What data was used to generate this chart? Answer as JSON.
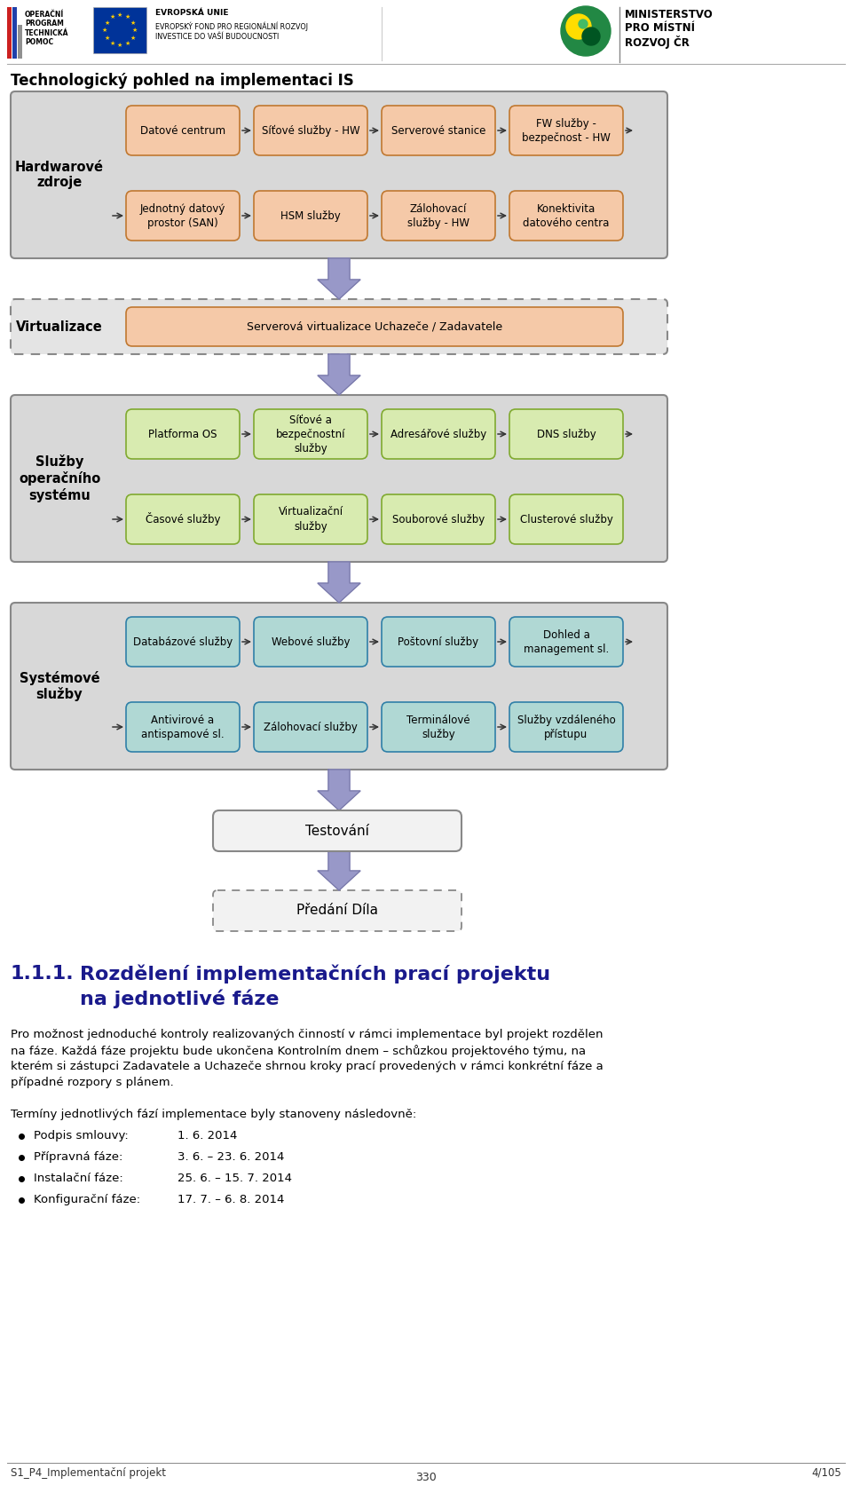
{
  "title": "Technologický pohled na implementaci IS",
  "bg_color": "#ffffff",
  "box_color_hw": "#f5c9a8",
  "box_color_virt": "#f5c9a8",
  "box_color_os": "#d8ebb0",
  "box_color_sys": "#b0d8d4",
  "box_border_hw": "#c07830",
  "box_border_os": "#80aa30",
  "box_border_sys": "#3080a8",
  "section_bg_solid": "#d8d8d8",
  "section_bg_dashed": "#e8e8e8",
  "section_border": "#888888",
  "arrow_color": "#9898c8",
  "hw_label": "Hardwarové\nzdroje",
  "virt_label": "Virtualizace",
  "os_label": "Služby\noperačního\nsystému",
  "sys_label": "Systémové\nslužby",
  "hw_row1": [
    "Datové centrum",
    "Síťové služby - HW",
    "Serverové stanice",
    "FW služby -\nbezpečnost - HW"
  ],
  "hw_row2": [
    "Jednotný datový\nprostor (SAN)",
    "HSM služby",
    "Zálohovací\nslužby - HW",
    "Konektivita\ndatového centra"
  ],
  "virt_box": "Serverová virtualizace Uchazeče / Zadavatele",
  "os_row1": [
    "Platforma OS",
    "Síťové a\nbezpečnostní\nslužby",
    "Adresářové služby",
    "DNS služby"
  ],
  "os_row2": [
    "Časové služby",
    "Virtualizační\nslužby",
    "Souborové služby",
    "Clusterové služby"
  ],
  "sys_row1": [
    "Databázové služby",
    "Webové služby",
    "Poštovní služby",
    "Dohled a\nmanagement sl."
  ],
  "sys_row2": [
    "Antivirové a\nantispamové sl.",
    "Zálohovací služby",
    "Terminálové\nslužby",
    "Služby vzdáleného\npřístupu"
  ],
  "test_box": "Testování",
  "deliver_box": "Předání Díla",
  "para1_line1": "Pro možnost jednoduché kontroly realizovaných činností v rámci implementace byl projekt rozdělen",
  "para1_line2": "na fáze. Každá fáze projektu bude ukončena Kontrolním dnem – schůzkou projektového týmu, na",
  "para1_line3": "kterém si zástupci Zadavatele a Uchazeče shrnou kroky prací provedených v rámci konkrétní fáze a",
  "para1_line4": "případné rozpory s plánem.",
  "para2": "Termíny jednotlivých fází implementace byly stanoveny následovně:",
  "bullets": [
    [
      "Podpis smlouvy:",
      "1. 6. 2014"
    ],
    [
      "Přípravná fáze:",
      "3. 6. – 23. 6. 2014"
    ],
    [
      "Instalační fáze:",
      "25. 6. – 15. 7. 2014"
    ],
    [
      "Konfigurační fáze:",
      "17. 7. – 6. 8. 2014"
    ]
  ],
  "footer_left": "S1_P4_Implementační projekt",
  "footer_center": "330",
  "footer_right": "4/105"
}
